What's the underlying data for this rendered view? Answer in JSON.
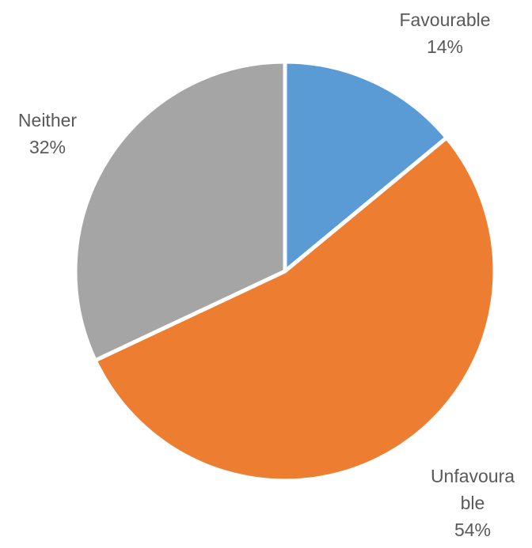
{
  "chart_data": {
    "type": "pie",
    "categories": [
      "Favourable",
      "Unfavourable",
      "Neither"
    ],
    "values": [
      14,
      54,
      32
    ],
    "labels": [
      {
        "lines": [
          "Favourable",
          "14%"
        ]
      },
      {
        "lines": [
          "Unfavoura",
          "ble",
          "54%"
        ]
      },
      {
        "lines": [
          "Neither",
          "32%"
        ]
      }
    ],
    "colors": [
      "#5B9BD5",
      "#ED7D31",
      "#A5A5A5"
    ],
    "slice_border_color": "#ffffff",
    "start_angle_deg": 0,
    "direction": "clockwise",
    "legend": "none",
    "label_position": "outside"
  }
}
